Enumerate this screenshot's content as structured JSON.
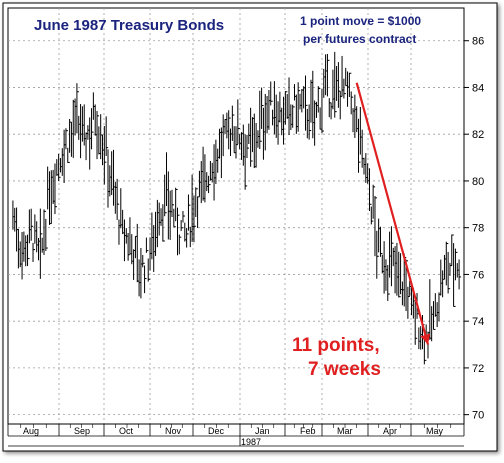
{
  "chart_data": {
    "type": "bar",
    "subtype": "ohlc",
    "title": "June 1987 Treasury Bonds",
    "note_line1": "1 point move = $1000",
    "note_line2": "per futures contract",
    "annotation_line1": "11 points,",
    "annotation_line2": "7 weeks",
    "year_label": "1987",
    "months": [
      "Aug",
      "Sep",
      "Oct",
      "Nov",
      "Dec",
      "Jan",
      "Feb",
      "Mar",
      "Apr",
      "May"
    ],
    "y_ticks": [
      70,
      72,
      74,
      76,
      78,
      80,
      82,
      84,
      86
    ],
    "ylim": [
      69.6,
      87.4
    ],
    "grid": true,
    "y_axis_side": "right",
    "colors": {
      "title": "#1a237e",
      "note": "#1a237e",
      "bars": "#000000",
      "trend": "#e02020",
      "annotation": "#e02020",
      "grid": "#9e9e9e"
    },
    "trend_line": {
      "from": {
        "week": 37.2,
        "price": 84.2
      },
      "to": {
        "week": 45.0,
        "price": 73.0
      }
    },
    "weekly_close": [
      78.6,
      77.0,
      77.8,
      76.6,
      79.5,
      80.9,
      81.7,
      82.4,
      81.8,
      82.9,
      81.5,
      79.7,
      77.7,
      77.3,
      76.1,
      76.9,
      78.7,
      79.2,
      78.1,
      77.6,
      79.4,
      79.9,
      81.0,
      81.6,
      82.3,
      81.9,
      81.4,
      82.3,
      83.2,
      83.0,
      82.6,
      83.3,
      83.0,
      82.7,
      83.8,
      83.6,
      84.1,
      83.4,
      81.6,
      79.5,
      77.0,
      76.4,
      76.2,
      75.4,
      74.2,
      73.3,
      74.0,
      75.8,
      76.5
    ]
  }
}
